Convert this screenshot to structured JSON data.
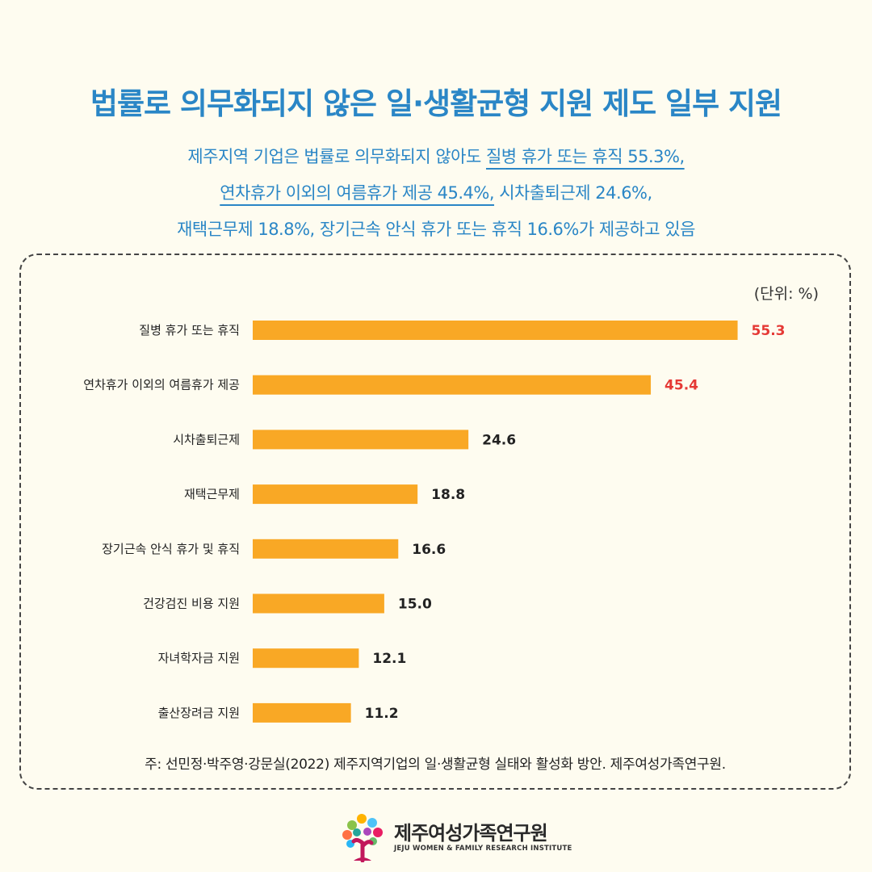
{
  "header": {
    "title": "법률로 의무화되지 않은 일·생활균형 지원 제도 일부 지원",
    "subtitle_lines": [
      [
        {
          "text": "제주지역 기업은 법률로 의무화되지 않아도 ",
          "underline": false
        },
        {
          "text": "질병 휴가 또는 휴직 55.3%,",
          "underline": true
        }
      ],
      [
        {
          "text": "연차휴가 이외의 여름휴가 제공 45.4%,",
          "underline": true
        },
        {
          "text": " 시차출퇴근제 24.6%,",
          "underline": false
        }
      ],
      [
        {
          "text": "재택근무제 18.8%, 장기근속 안식 휴가 또는 휴직 16.6%가 제공하고 있음",
          "underline": false
        }
      ]
    ]
  },
  "chart_data": {
    "type": "bar",
    "orientation": "horizontal",
    "unit_label": "(단위: %)",
    "categories": [
      "질병 휴가 또는 휴직",
      "연차휴가 이외의 여름휴가 제공",
      "시차출퇴근제",
      "재택근무제",
      "장기근속 안식 휴가 및 휴직",
      "건강검진 비용 지원",
      "자녀학자금 지원",
      "출산장려금 지원"
    ],
    "values": [
      55.3,
      45.4,
      24.6,
      18.8,
      16.6,
      15.0,
      12.1,
      11.2
    ],
    "value_labels": [
      "55.3",
      "45.4",
      "24.6",
      "18.8",
      "16.6",
      "15.0",
      "12.1",
      "11.2"
    ],
    "highlighted": [
      true,
      true,
      false,
      false,
      false,
      false,
      false,
      false
    ],
    "bar_color": "#f9a825",
    "highlight_label_color": "#e53935",
    "label_color": "#222222",
    "grid": false,
    "legend": "none"
  },
  "footnote": "주: 선민정·박주영·강문실(2022) 제주지역기업의 일·생활균형 실태와 활성화 방안. 제주여성가족연구원.",
  "logo": {
    "name": "제주여성가족연구원",
    "subtitle": "JEJU WOMEN & FAMILY RESEARCH INSTITUTE"
  }
}
